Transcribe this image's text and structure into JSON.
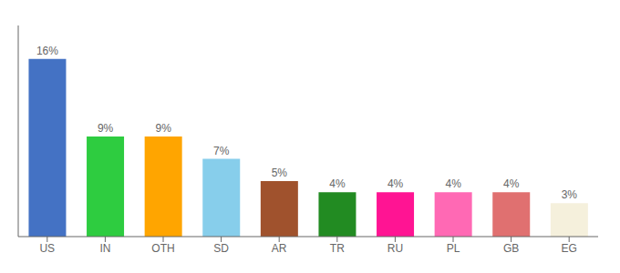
{
  "chart_data": {
    "type": "bar",
    "categories": [
      "US",
      "IN",
      "OTH",
      "SD",
      "AR",
      "TR",
      "RU",
      "PL",
      "GB",
      "EG"
    ],
    "values": [
      16,
      9,
      9,
      7,
      5,
      4,
      4,
      4,
      4,
      3
    ],
    "value_labels": [
      "16%",
      "9%",
      "9%",
      "7%",
      "5%",
      "4%",
      "4%",
      "4%",
      "4%",
      "3%"
    ],
    "colors": [
      "#4472C4",
      "#2ECC40",
      "#FFA500",
      "#87CEEB",
      "#A0522D",
      "#228B22",
      "#FF1493",
      "#FF69B4",
      "#E07070",
      "#F5F0DC"
    ],
    "ylim": [
      0,
      19
    ],
    "grid": false,
    "tick_labels": "x",
    "data_labels": true
  }
}
